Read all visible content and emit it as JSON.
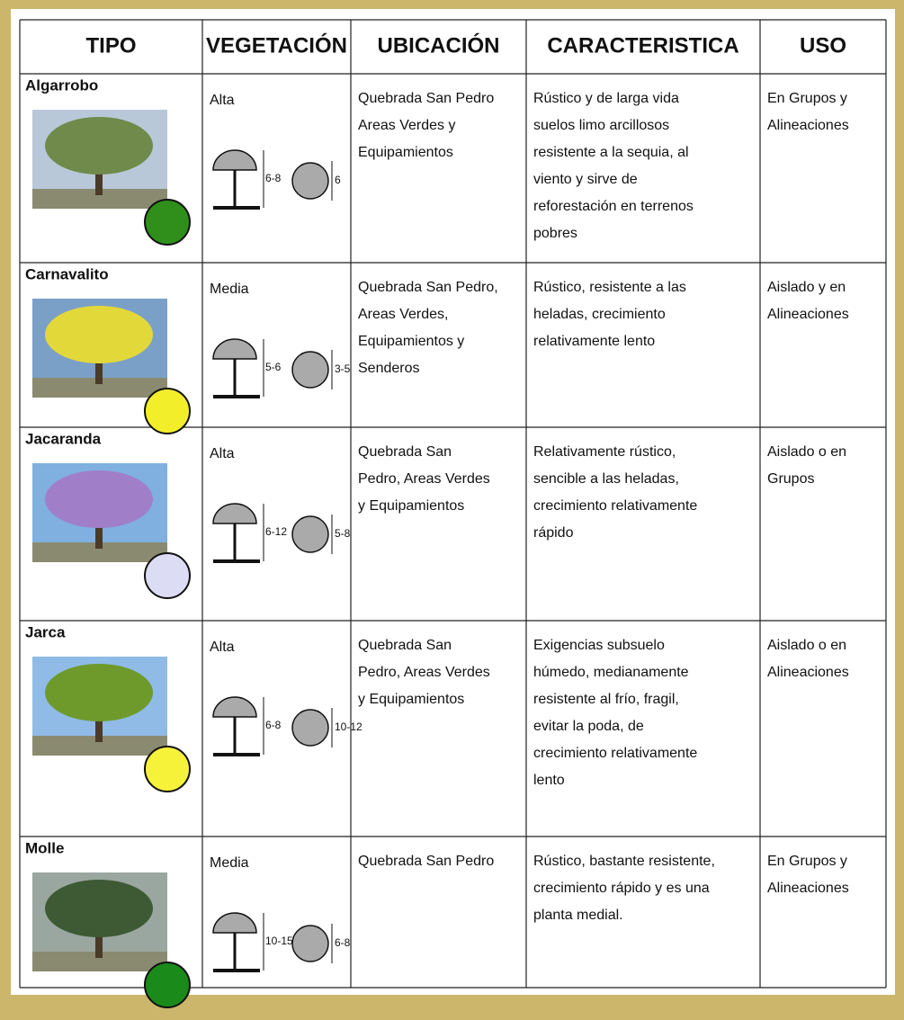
{
  "table": {
    "header": [
      "TIPO",
      "VEGETACIÓN",
      "UBICACIÓN",
      "CARACTERISTICA",
      "USO"
    ],
    "rows": [
      {
        "name": "Algarrobo",
        "vegetation": "Alta",
        "height": "6-8",
        "crown": "6",
        "location": [
          "Quebrada San Pedro",
          "Areas Verdes y",
          "Equipamientos"
        ],
        "features": [
          "Rústico y de larga vida",
          "suelos limo arcillosos",
          "resistente a la sequia, al",
          "viento y sirve de",
          "reforestación en terrenos",
          "pobres"
        ],
        "use": [
          "En Grupos y",
          "Alineaciones"
        ]
      },
      {
        "name": "Carnavalito",
        "vegetation": "Media",
        "height": "5-6",
        "crown": "3-5",
        "location": [
          "Quebrada San Pedro,",
          "Areas Verdes,",
          "Equipamientos y",
          "Senderos"
        ],
        "features": [
          "Rústico, resistente a las",
          "heladas, crecimiento",
          "relativamente lento"
        ],
        "use": [
          "Aislado y en",
          "Alineaciones"
        ]
      },
      {
        "name": "Jacaranda",
        "vegetation": "Alta",
        "height": "6-12",
        "crown": "5-8",
        "location": [
          "Quebrada San",
          "Pedro, Areas Verdes",
          "y Equipamientos"
        ],
        "features": [
          "Relativamente rústico,",
          "sencible a las heladas,",
          "crecimiento relativamente",
          "rápido"
        ],
        "use": [
          "Aislado o en",
          "Grupos"
        ]
      },
      {
        "name": "Jarca",
        "vegetation": "Alta",
        "height": "6-8",
        "crown": "10-12",
        "location": [
          "Quebrada San",
          "Pedro, Areas Verdes",
          "y Equipamientos"
        ],
        "features": [
          "Exigencias subsuelo",
          "húmedo, medianamente",
          "resistente al frío, fragil,",
          "evitar la poda, de",
          "crecimiento relativamente",
          "lento"
        ],
        "use": [
          "Aislado o en",
          "Alineaciones"
        ]
      },
      {
        "name": "Molle",
        "vegetation": "Media",
        "height": "10-15",
        "crown": "6-8",
        "location": [
          "Quebrada San Pedro"
        ],
        "features": [
          "Rústico, bastante resistente,",
          "crecimiento rápido y es una",
          "planta medial."
        ],
        "use": [
          "En Grupos y",
          "Alineaciones"
        ]
      }
    ]
  }
}
